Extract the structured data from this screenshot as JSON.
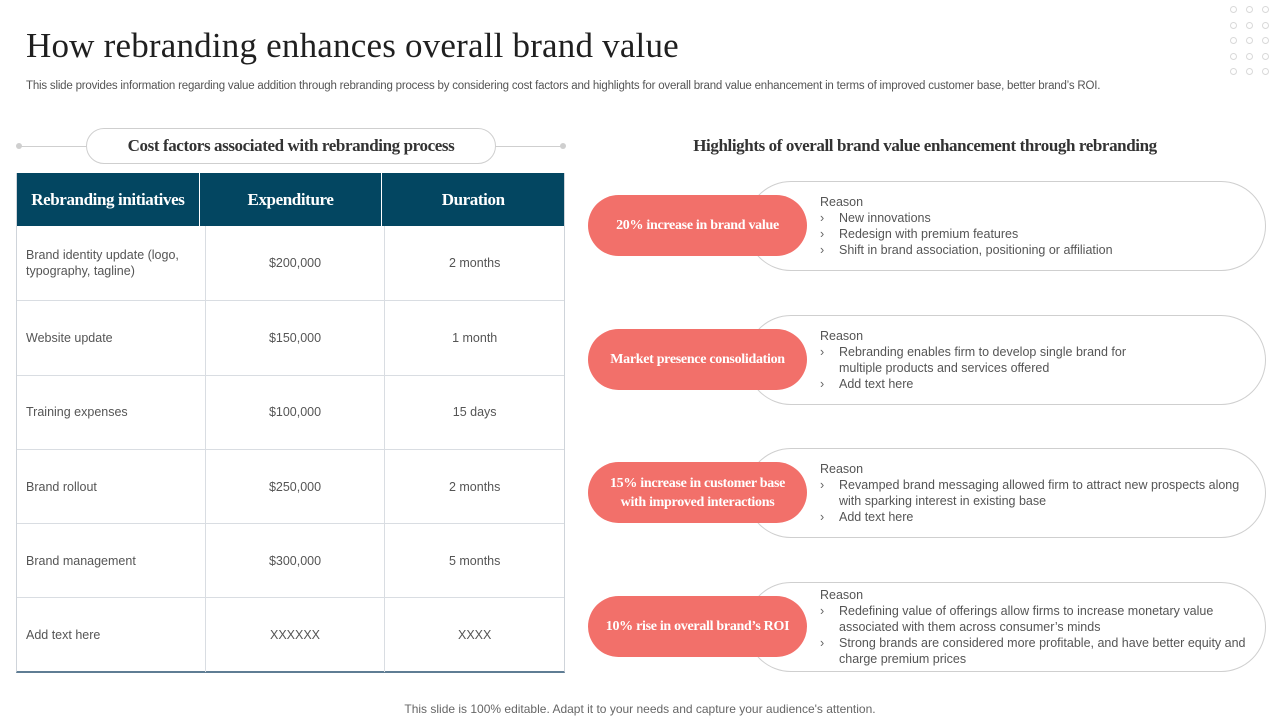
{
  "title": "How rebranding enhances overall brand value",
  "subtitle": "This slide provides information regarding value addition through rebranding process by considering cost factors and highlights for overall brand value enhancement in terms of improved customer base, better brand’s ROI.",
  "cost_section": {
    "heading": "Cost factors associated with rebranding process",
    "columns": [
      "Rebranding initiatives",
      "Expenditure",
      "Duration"
    ],
    "rows": [
      {
        "initiative": "Brand identity update (logo, typography, tagline)",
        "expenditure": "$200,000",
        "duration": "2 months"
      },
      {
        "initiative": "Website update",
        "expenditure": "$150,000",
        "duration": "1 month"
      },
      {
        "initiative": "Training  expenses",
        "expenditure": "$100,000",
        "duration": "15 days"
      },
      {
        "initiative": "Brand rollout",
        "expenditure": "$250,000",
        "duration": "2 months"
      },
      {
        "initiative": "Brand management",
        "expenditure": "$300,000",
        "duration": "5 months"
      },
      {
        "initiative": "Add text here",
        "expenditure": "XXXXXX",
        "duration": "XXXX"
      }
    ]
  },
  "highlights_section": {
    "heading": "Highlights of overall brand value enhancement through rebranding",
    "items": [
      {
        "badge": "20% increase in brand value",
        "reason_label": "Reason",
        "bullets": [
          "New innovations",
          "Redesign with premium features",
          "Shift in brand association, positioning or affiliation"
        ]
      },
      {
        "badge": "Market presence consolidation",
        "reason_label": "Reason",
        "bullets": [
          "Rebranding enables firm to develop single brand for multiple products and services offered",
          "Add text here"
        ]
      },
      {
        "badge": "15% increase in customer base with improved interactions",
        "reason_label": "Reason",
        "bullets": [
          "Revamped brand messaging allowed firm to attract new prospects along with sparking interest in existing base",
          "Add text here"
        ]
      },
      {
        "badge": "10% rise in overall brand’s ROI",
        "reason_label": "Reason",
        "bullets": [
          "Redefining value of offerings allow firms to increase monetary value associated with them across consumer’s minds",
          "Strong brands are considered more profitable, and have better equity and charge premium prices"
        ]
      }
    ]
  },
  "footer": "This slide is 100% editable. Adapt it to your needs and capture your audience's attention.",
  "colors": {
    "table_header": "#034661",
    "badge": "#f2706a"
  },
  "icons": {
    "bullet": "chevron-right-icon",
    "decoration": "dot-grid"
  }
}
